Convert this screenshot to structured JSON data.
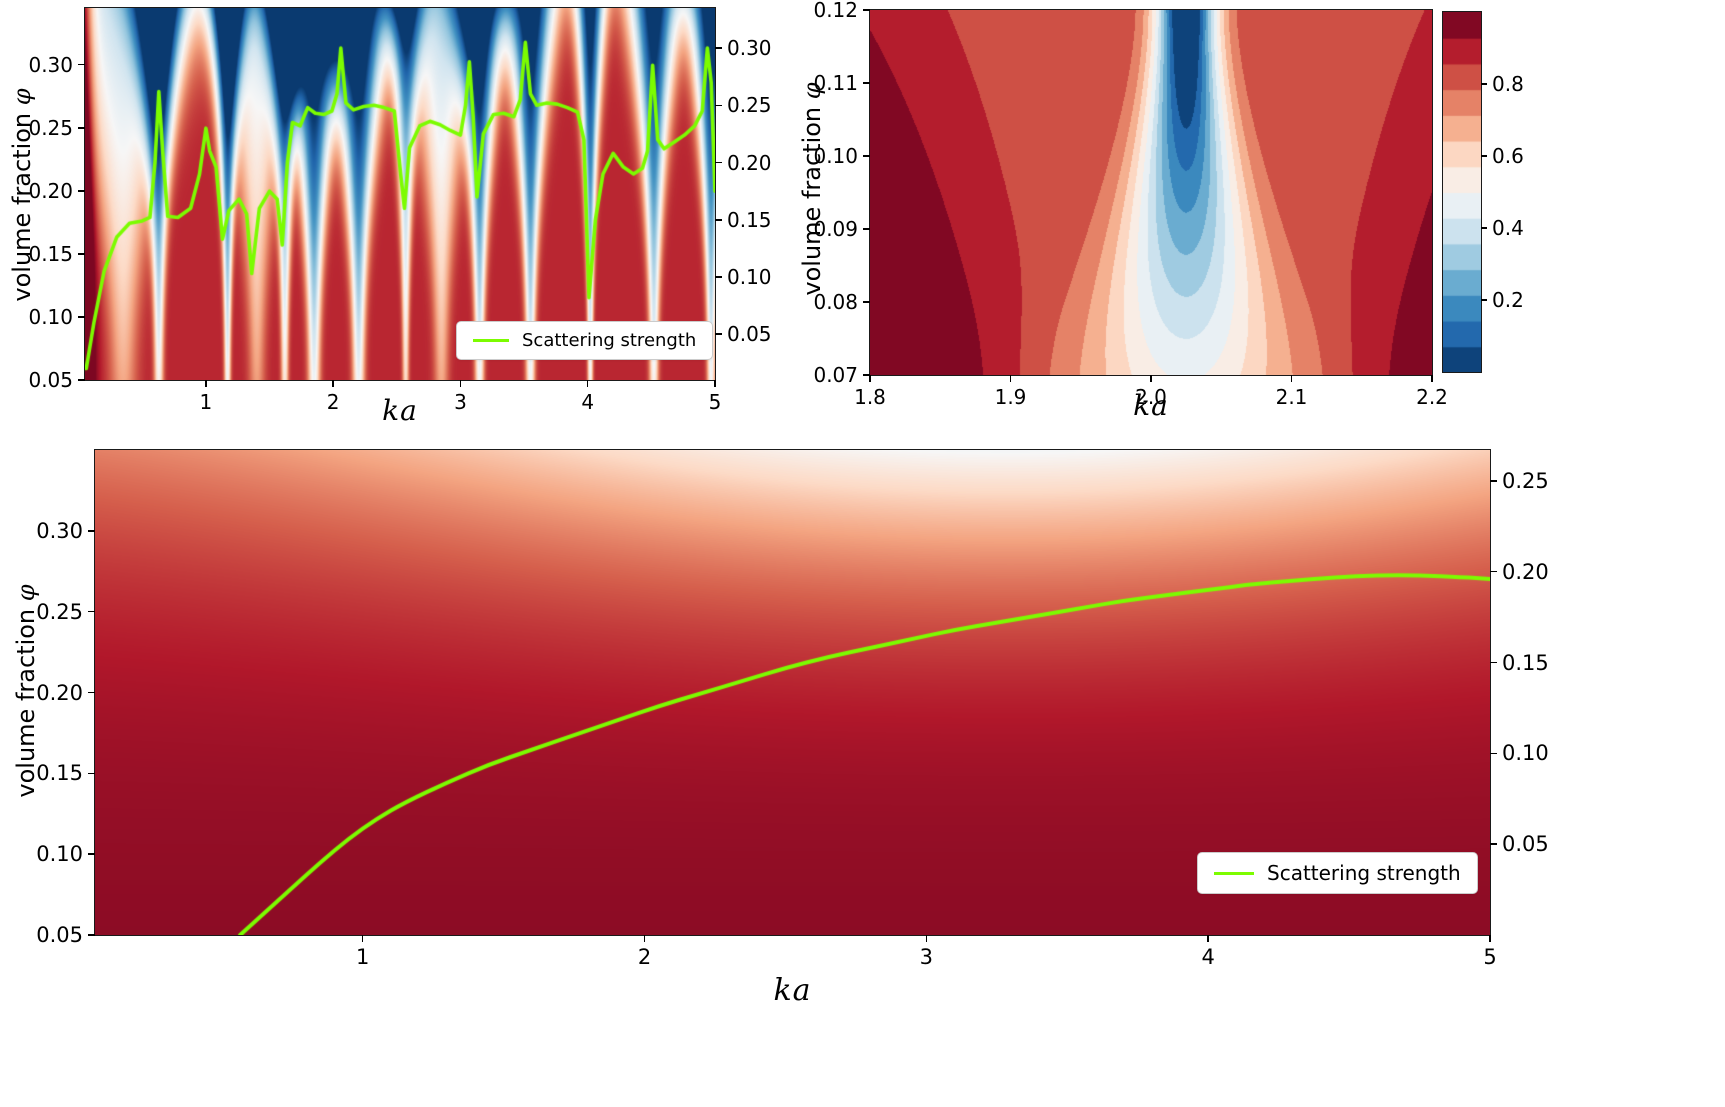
{
  "colors": {
    "line_green": "#7cfc00",
    "legend_border": "#cbcbcb",
    "legend_background": "#ffffff",
    "text": "#000000",
    "background": "#ffffff"
  },
  "colormap_rdbu_r": [
    "#053061",
    "#2166ac",
    "#4393c3",
    "#92c5de",
    "#d1e5f0",
    "#f7f7f7",
    "#fddbc7",
    "#f4a582",
    "#d6604d",
    "#b2182b",
    "#67001f"
  ],
  "chart_data": [
    {
      "id": "top_left",
      "type": "heatmap",
      "xlabel": "ka",
      "ylabel_text": "volume fraction",
      "ylabel_symbol": "φ",
      "xlim": [
        0.05,
        5.0
      ],
      "ylim": [
        0.05,
        0.345
      ],
      "y2lim": [
        0.01,
        0.335
      ],
      "x_ticks": [
        1,
        2,
        3,
        4,
        5
      ],
      "x_tick_labels": [
        "1",
        "2",
        "3",
        "4",
        "5"
      ],
      "y_ticks": [
        0.05,
        0.1,
        0.15,
        0.2,
        0.25,
        0.3
      ],
      "y_tick_labels": [
        "0.05",
        "0.10",
        "0.15",
        "0.20",
        "0.25",
        "0.30"
      ],
      "y2_ticks": [
        0.05,
        0.1,
        0.15,
        0.2,
        0.25,
        0.3
      ],
      "y2_tick_labels": [
        "0.05",
        "0.10",
        "0.15",
        "0.20",
        "0.25",
        "0.30"
      ],
      "colormap": "RdBu_r",
      "legend_position": "lower right",
      "heatmap_description": "reflectance map with vertical resonance bands: dark blue dips at resonant ka widening toward high volume fraction, pale regions between, dark red background",
      "field_params": {
        "base": 0.88,
        "amp_floor": 0.38,
        "amp_slope": 0.62,
        "width_base": 0.025,
        "width_gain": 0.11,
        "left_edge_dark": {
          "k": 0.0,
          "s": 0.55,
          "w": 0.07
        }
      },
      "resonances": [
        {
          "k": 0.35,
          "s": 0.5,
          "w": 3.0
        },
        {
          "k": 0.63,
          "s": 0.95,
          "w": 1.0
        },
        {
          "k": 1.17,
          "s": 1.0,
          "w": 0.7
        },
        {
          "k": 1.4,
          "s": 0.45,
          "w": 1.8
        },
        {
          "k": 1.62,
          "s": 0.85,
          "w": 0.8
        },
        {
          "k": 1.85,
          "s": 1.05,
          "w": 1.3
        },
        {
          "k": 2.2,
          "s": 1.05,
          "w": 1.3
        },
        {
          "k": 2.57,
          "s": 0.75,
          "w": 0.7
        },
        {
          "k": 2.85,
          "s": 0.5,
          "w": 1.6
        },
        {
          "k": 3.15,
          "s": 1.0,
          "w": 1.0
        },
        {
          "k": 3.55,
          "s": 1.0,
          "w": 1.0
        },
        {
          "k": 4.02,
          "s": 0.95,
          "w": 0.6
        },
        {
          "k": 4.52,
          "s": 0.95,
          "w": 1.0
        },
        {
          "k": 4.97,
          "s": 1.0,
          "w": 0.9
        }
      ],
      "series": [
        {
          "name": "Scattering strength",
          "axis": "right",
          "x": [
            0.06,
            0.12,
            0.2,
            0.3,
            0.4,
            0.5,
            0.56,
            0.6,
            0.63,
            0.66,
            0.7,
            0.78,
            0.88,
            0.95,
            1.0,
            1.03,
            1.08,
            1.13,
            1.18,
            1.26,
            1.32,
            1.36,
            1.42,
            1.5,
            1.56,
            1.6,
            1.64,
            1.68,
            1.74,
            1.8,
            1.86,
            1.93,
            1.99,
            2.03,
            2.06,
            2.1,
            2.16,
            2.24,
            2.32,
            2.4,
            2.48,
            2.53,
            2.56,
            2.6,
            2.68,
            2.76,
            2.84,
            2.92,
            3.0,
            3.04,
            3.07,
            3.1,
            3.13,
            3.18,
            3.26,
            3.34,
            3.42,
            3.47,
            3.51,
            3.55,
            3.6,
            3.68,
            3.76,
            3.84,
            3.92,
            3.97,
            4.01,
            4.06,
            4.12,
            4.2,
            4.28,
            4.36,
            4.43,
            4.47,
            4.51,
            4.55,
            4.6,
            4.68,
            4.76,
            4.84,
            4.9,
            4.94,
            4.97,
            5.0
          ],
          "y": [
            0.02,
            0.06,
            0.105,
            0.135,
            0.147,
            0.149,
            0.152,
            0.2,
            0.262,
            0.21,
            0.153,
            0.152,
            0.16,
            0.19,
            0.23,
            0.21,
            0.196,
            0.133,
            0.158,
            0.168,
            0.155,
            0.103,
            0.16,
            0.175,
            0.168,
            0.128,
            0.2,
            0.235,
            0.232,
            0.248,
            0.243,
            0.242,
            0.245,
            0.26,
            0.3,
            0.252,
            0.246,
            0.249,
            0.25,
            0.248,
            0.245,
            0.19,
            0.16,
            0.213,
            0.232,
            0.236,
            0.233,
            0.228,
            0.224,
            0.25,
            0.288,
            0.24,
            0.17,
            0.225,
            0.242,
            0.243,
            0.24,
            0.255,
            0.305,
            0.26,
            0.25,
            0.252,
            0.251,
            0.248,
            0.244,
            0.22,
            0.082,
            0.15,
            0.19,
            0.208,
            0.196,
            0.19,
            0.195,
            0.21,
            0.285,
            0.22,
            0.212,
            0.218,
            0.224,
            0.232,
            0.245,
            0.3,
            0.27,
            0.175
          ]
        }
      ]
    },
    {
      "id": "top_right",
      "type": "contour",
      "xlabel": "ka",
      "ylabel_text": "volume fraction",
      "ylabel_symbol": "φ",
      "xlim": [
        1.8,
        2.2
      ],
      "ylim": [
        0.07,
        0.12
      ],
      "x_ticks": [
        1.8,
        1.9,
        2.0,
        2.1,
        2.2
      ],
      "x_tick_labels": [
        "1.8",
        "1.9",
        "2.0",
        "2.1",
        "2.2"
      ],
      "y_ticks": [
        0.07,
        0.08,
        0.09,
        0.1,
        0.11,
        0.12
      ],
      "y_tick_labels": [
        "0.07",
        "0.08",
        "0.09",
        "0.10",
        "0.11",
        "0.12"
      ],
      "colormap": "RdBu_r",
      "colorbar": {
        "range": [
          0,
          1
        ],
        "levels": 14,
        "ticks": [
          0.2,
          0.4,
          0.6,
          0.8
        ],
        "tick_labels": [
          "0.2",
          "0.4",
          "0.6",
          "0.8"
        ]
      },
      "heatmap_description": "filled contour: deep narrow blue minimum funnel centered at ka ~ 2.025, deepest near top (phi 0.12), pale widening V toward phi 0.07, dark red background with darkest maroon at left and corners",
      "contour_params": {
        "center_ka": 2.025,
        "sigma_top": 0.015,
        "sigma_add": 0.038,
        "sigma_pow": 1.6,
        "amp_top": 0.97,
        "amp_drop": 0.62,
        "bg_base": 0.84,
        "bg_add": 0.13,
        "bg_edge0": 0.1,
        "bg_edge1": 0.22
      }
    },
    {
      "id": "bottom",
      "type": "heatmap",
      "xlabel": "ka",
      "ylabel_text": "volume fraction",
      "ylabel_symbol": "φ",
      "xlim": [
        0.05,
        5.0
      ],
      "ylim": [
        0.05,
        0.35
      ],
      "y2lim": [
        0.0,
        0.267
      ],
      "x_ticks": [
        1,
        2,
        3,
        4,
        5
      ],
      "x_tick_labels": [
        "1",
        "2",
        "3",
        "4",
        "5"
      ],
      "y_ticks": [
        0.05,
        0.1,
        0.15,
        0.2,
        0.25,
        0.3
      ],
      "y_tick_labels": [
        "0.05",
        "0.10",
        "0.15",
        "0.20",
        "0.25",
        "0.30"
      ],
      "y2_ticks": [
        0.05,
        0.1,
        0.15,
        0.2,
        0.25
      ],
      "y2_tick_labels": [
        "0.05",
        "0.10",
        "0.15",
        "0.20",
        "0.25"
      ],
      "colormap": "RdBu_r",
      "legend_position": "lower right",
      "heatmap_description": "smooth dark red field, gradually lighter toward top edge, palest pink near top around ka 2.5-4.5",
      "gradient_params": {
        "base": 0.95,
        "amp_min": 0.12,
        "amp_peak": 0.3,
        "ka_center": 3.3,
        "ka_sigma": 1.6,
        "phi_pow": 3.2,
        "phi_lin": 0.04
      },
      "series": [
        {
          "name": "Scattering strength",
          "axis": "right",
          "x": [
            0.565,
            0.65,
            0.75,
            0.85,
            0.95,
            1.05,
            1.15,
            1.3,
            1.45,
            1.6,
            1.75,
            1.9,
            2.05,
            2.2,
            2.35,
            2.5,
            2.65,
            2.8,
            2.95,
            3.1,
            3.25,
            3.4,
            3.55,
            3.7,
            3.85,
            4.0,
            4.15,
            4.3,
            4.45,
            4.6,
            4.75,
            4.9,
            5.0
          ],
          "y": [
            0.0,
            0.012,
            0.026,
            0.04,
            0.053,
            0.064,
            0.073,
            0.084,
            0.094,
            0.102,
            0.11,
            0.118,
            0.126,
            0.133,
            0.14,
            0.147,
            0.153,
            0.158,
            0.163,
            0.168,
            0.172,
            0.176,
            0.18,
            0.184,
            0.187,
            0.19,
            0.193,
            0.195,
            0.197,
            0.198,
            0.198,
            0.197,
            0.196
          ]
        }
      ]
    }
  ]
}
